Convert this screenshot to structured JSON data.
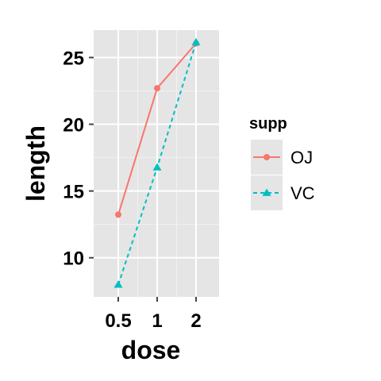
{
  "chart_data": {
    "type": "line",
    "x": [
      "0.5",
      "1",
      "2"
    ],
    "series": [
      {
        "name": "OJ",
        "values": [
          13.23,
          22.7,
          26.06
        ],
        "color": "#F8766D",
        "linetype": "solid",
        "marker": "circle"
      },
      {
        "name": "VC",
        "values": [
          7.98,
          16.77,
          26.14
        ],
        "color": "#00BFC4",
        "linetype": "dashed",
        "marker": "triangle"
      }
    ],
    "xlabel": "dose",
    "ylabel": "length",
    "yticks": [
      "10",
      "15",
      "20",
      "25"
    ],
    "ylim": [
      7.07,
      27.05
    ],
    "legend": {
      "title": "supp",
      "position": "right"
    },
    "panel_background": "#E5E5E5",
    "grid": true
  }
}
